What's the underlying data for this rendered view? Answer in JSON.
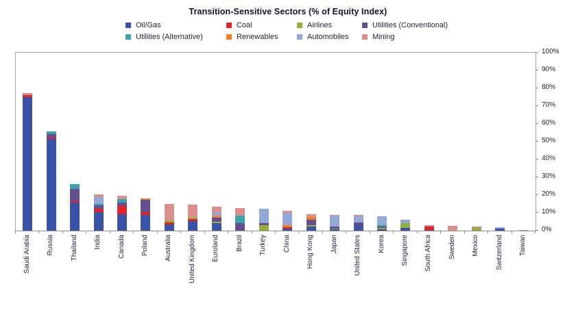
{
  "title": "Transition-Sensitive Sectors (% of Equity Index)",
  "chart_data": {
    "type": "bar",
    "stacked": true,
    "unit": "%",
    "title": "Transition-Sensitive Sectors (% of Equity Index)",
    "legend_position": "top",
    "grid": false,
    "y_axis": {
      "min": 0,
      "max": 100,
      "step": 10,
      "side": "right",
      "label_suffix": "%"
    },
    "categories": [
      "Saudi Arabia",
      "Russia",
      "Thailand",
      "India",
      "Canada",
      "Poland",
      "Australia",
      "United Kingdom",
      "Euroland",
      "Brazil",
      "Turkey",
      "China",
      "Hong Kong",
      "Japan",
      "United States",
      "Korea",
      "Singapore",
      "South Africa",
      "Sweden",
      "Mexico",
      "Switzerland",
      "Taiwan"
    ],
    "series": [
      {
        "name": "Oil/Gas",
        "color": "#3a53a4",
        "values": [
          75.0,
          51.5,
          15.6,
          10.4,
          9.1,
          8.8,
          3.5,
          5.4,
          4.3,
          0,
          0,
          1.0,
          2.4,
          0.6,
          2.9,
          0.8,
          1.5,
          0.4,
          0,
          0,
          1.3,
          0
        ]
      },
      {
        "name": "Coal",
        "color": "#e02427",
        "values": [
          1.0,
          1.0,
          0.8,
          1.9,
          4.9,
          1.5,
          1.3,
          1.2,
          0,
          0,
          0,
          1.0,
          0,
          0,
          0,
          0,
          0,
          1.9,
          0,
          0,
          0,
          0
        ]
      },
      {
        "name": "Airlines",
        "color": "#94b13d",
        "values": [
          0,
          0,
          0,
          0,
          0,
          0,
          0.8,
          0.9,
          0.9,
          0,
          3.0,
          0,
          0.8,
          0.7,
          0,
          0.8,
          2.8,
          0,
          0,
          1.5,
          0,
          0
        ]
      },
      {
        "name": "Utilities (Conventional)",
        "color": "#645091",
        "values": [
          0,
          1.6,
          7.0,
          1.9,
          1.7,
          7.2,
          0,
          0,
          2.0,
          4.4,
          1.2,
          0,
          2.9,
          0.9,
          1.8,
          0.6,
          0,
          0,
          0,
          0,
          0,
          0
        ]
      },
      {
        "name": "Utilities (Alternative)",
        "color": "#3da3ab",
        "values": [
          0,
          1.5,
          2.9,
          0.8,
          1.9,
          0,
          0,
          0,
          0,
          3.9,
          0,
          0,
          0,
          0,
          0,
          1.0,
          0,
          0,
          0,
          0,
          0,
          0
        ]
      },
      {
        "name": "Renewables",
        "color": "#f07f29",
        "values": [
          0,
          0,
          0,
          0,
          0,
          0.6,
          0,
          0,
          1.3,
          0,
          0,
          1.2,
          1.6,
          0,
          0,
          0,
          0,
          0,
          0,
          0,
          0,
          0
        ]
      },
      {
        "name": "Automobiles",
        "color": "#95a9d9",
        "values": [
          0,
          0,
          0,
          3.7,
          0,
          0,
          0,
          0,
          1.8,
          0,
          8.2,
          7.0,
          0,
          6.3,
          3.4,
          5.0,
          1.7,
          0,
          0,
          0,
          0.7,
          0.3
        ]
      },
      {
        "name": "Mining",
        "color": "#d9908f",
        "values": [
          1.5,
          0,
          0,
          1.7,
          1.9,
          0,
          9.6,
          7.1,
          3.0,
          4.4,
          0,
          0.8,
          1.6,
          0.4,
          0.6,
          0,
          0,
          0.8,
          2.6,
          0.9,
          0,
          0
        ]
      }
    ]
  }
}
